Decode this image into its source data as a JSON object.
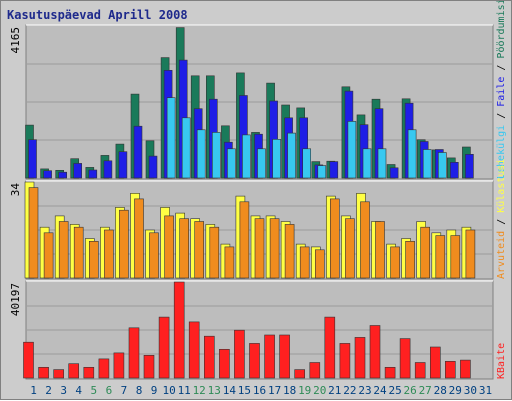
{
  "chart_data": {
    "type": "bar",
    "title": "Kasutuspäevad Aprill 2008",
    "categories": [
      "1",
      "2",
      "3",
      "4",
      "5",
      "6",
      "7",
      "8",
      "9",
      "10",
      "11",
      "12",
      "13",
      "14",
      "15",
      "16",
      "17",
      "18",
      "19",
      "20",
      "21",
      "22",
      "23",
      "24",
      "25",
      "26",
      "27",
      "28",
      "29",
      "30",
      "31"
    ],
    "weekend_days": [
      "5",
      "6",
      "12",
      "13",
      "19",
      "20",
      "26",
      "27"
    ],
    "panels": [
      {
        "id": "top",
        "ymax_label": "4165",
        "ymax": 4165,
        "right_label_parts": [
          "Pöördumisi",
          "Faile",
          "Lehekülgi"
        ],
        "series": [
          {
            "name": "Pöördumisi",
            "color": "#1a7a5a",
            "values": [
              1450,
              250,
              210,
              530,
              290,
              620,
              930,
              2300,
              1020,
              3300,
              4120,
              2800,
              2800,
              1430,
              2880,
              1250,
              2600,
              2000,
              1920,
              450,
              460,
              2500,
              1730,
              2160,
              370,
              2170,
              1050,
              770,
              550,
              850,
              0
            ]
          },
          {
            "name": "Faile",
            "color": "#1e1ee6",
            "values": [
              1050,
              200,
              160,
              400,
              220,
              470,
              720,
              1420,
              600,
              2950,
              3230,
              1900,
              2160,
              980,
              2260,
              1200,
              2110,
              1650,
              1650,
              360,
              450,
              2380,
              1460,
              1900,
              280,
              2050,
              1000,
              780,
              430,
              650,
              0
            ]
          },
          {
            "name": "Lehekülgi",
            "color": "#38c8f0",
            "values": [
              0,
              0,
              0,
              0,
              0,
              0,
              0,
              0,
              0,
              2200,
              1650,
              1320,
              1250,
              800,
              1180,
              800,
              1060,
              1230,
              800,
              340,
              0,
              1550,
              800,
              800,
              0,
              1320,
              780,
              700,
              0,
              0,
              0
            ]
          }
        ]
      },
      {
        "id": "middle",
        "ymax_label": "34",
        "ymax": 34,
        "right_label_parts": [
          "Külastusi",
          "Arvuteid"
        ],
        "series": [
          {
            "name": "Külastusi",
            "color": "#ffff44",
            "values": [
              34,
              18,
              22,
              19,
              14,
              18,
              25,
              30,
              17,
              25,
              23,
              21,
              19,
              12,
              29,
              22,
              22,
              20,
              12,
              11,
              29,
              22,
              30,
              20,
              12,
              14,
              20,
              16,
              17,
              18,
              0
            ]
          },
          {
            "name": "Arvuteid",
            "color": "#f08c1e",
            "values": [
              32,
              16,
              20,
              18,
              13,
              17,
              24,
              28,
              16,
              22,
              21,
              20,
              18,
              11,
              27,
              21,
              21,
              19,
              11,
              10,
              28,
              21,
              27,
              20,
              11,
              13,
              18,
              15,
              15,
              17,
              0
            ]
          }
        ]
      },
      {
        "id": "bottom",
        "ymax_label": "40197",
        "ymax": 40197,
        "right_label_parts": [
          "KBaite"
        ],
        "series": [
          {
            "name": "KBaite",
            "color": "#ff2020",
            "values": [
              15000,
              4500,
              3500,
              6000,
              4500,
              8000,
              10500,
              21000,
              9500,
              25500,
              40197,
              23500,
              17500,
              12000,
              20000,
              14500,
              18000,
              18000,
              3500,
              6500,
              25500,
              14500,
              17000,
              22000,
              4500,
              16500,
              6500,
              13000,
              7000,
              7500,
              0
            ]
          }
        ]
      }
    ],
    "x_tick_colors": {
      "weekday": "#004080",
      "weekend": "#2e8b57"
    },
    "grid": true,
    "legend": "right-vertical"
  }
}
